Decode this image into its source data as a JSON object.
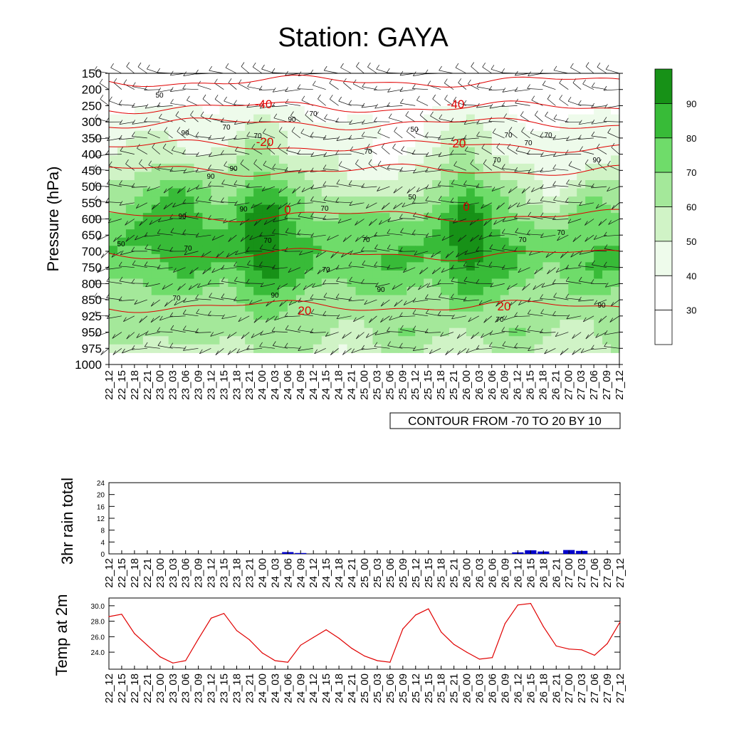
{
  "title": "Station: GAYA",
  "time_labels": [
    "22_12",
    "22_15",
    "22_18",
    "22_21",
    "23_00",
    "23_03",
    "23_06",
    "23_09",
    "23_12",
    "23_15",
    "23_18",
    "23_21",
    "24_00",
    "24_03",
    "24_06",
    "24_09",
    "24_12",
    "24_15",
    "24_18",
    "24_21",
    "25_00",
    "25_03",
    "25_06",
    "25_09",
    "25_12",
    "25_15",
    "25_18",
    "25_21",
    "26_00",
    "26_03",
    "26_06",
    "26_09",
    "26_12",
    "26_15",
    "26_18",
    "26_21",
    "27_00",
    "27_03",
    "27_06",
    "27_09",
    "27_12"
  ],
  "colors": {
    "rh": [
      "#ffffff",
      "#eefbeb",
      "#d0f3c6",
      "#a4e89a",
      "#6fdc6a",
      "#38bb38",
      "#179117"
    ],
    "temp_contour": "#e00000",
    "rain_bar": "#0000cc",
    "temp_line": "#e00000"
  },
  "chart_data": [
    {
      "type": "heatmap",
      "name": "main",
      "title": "Station: GAYA",
      "ylabel": "Pressure (hPa)",
      "levels": [
        150,
        200,
        250,
        300,
        350,
        400,
        450,
        500,
        550,
        600,
        650,
        700,
        750,
        800,
        850,
        925,
        950,
        975,
        1000
      ],
      "contour_note": "CONTOUR FROM -70 TO 20 BY 10",
      "colorbar_ticks": [
        90,
        80,
        70,
        60,
        50,
        40,
        30
      ],
      "colorbar_bounds": [
        20,
        30,
        40,
        50,
        60,
        70,
        80,
        90,
        100
      ],
      "temp_contours": [
        {
          "value": -50,
          "pressure": 175
        },
        {
          "value": -40,
          "pressure": 255
        },
        {
          "value": -30,
          "pressure": 305
        },
        {
          "value": -20,
          "pressure": 375
        },
        {
          "value": -10,
          "pressure": 450
        },
        {
          "value": 0,
          "pressure": 590
        },
        {
          "value": 10,
          "pressure": 710
        },
        {
          "value": 20,
          "pressure": 880
        }
      ],
      "contour_labels": [
        "-40",
        "-20",
        "0",
        "20",
        "-40",
        "-20",
        "0",
        "20"
      ],
      "rh_labels": [
        "50",
        "70",
        "50",
        "70",
        "70",
        "70",
        "90",
        "70",
        "90",
        "70",
        "70",
        "70",
        "90",
        "90",
        "90",
        "90",
        "90",
        "70",
        "70",
        "50",
        "70",
        "50",
        "70",
        "70",
        "70",
        "70",
        "90",
        "90",
        "70",
        "70",
        "90"
      ]
    },
    {
      "type": "bar",
      "name": "rain",
      "ylabel": "3hr rain total",
      "yticks": [
        0,
        4,
        8,
        12,
        16,
        20,
        24
      ],
      "ylim": [
        0,
        24
      ],
      "values": [
        0,
        0,
        0,
        0,
        0,
        0,
        0,
        0,
        0,
        0,
        0,
        0,
        0,
        0,
        0.6,
        0.3,
        0,
        0,
        0,
        0,
        0,
        0,
        0,
        0,
        0,
        0,
        0,
        0,
        0,
        0,
        0,
        0,
        0.5,
        1.2,
        0.8,
        0,
        1.3,
        1.0,
        0,
        0,
        0
      ]
    },
    {
      "type": "line",
      "name": "temp",
      "ylabel": "Temp at 2m",
      "yticks": [
        "24.0",
        "26.0",
        "28.0",
        "30.0"
      ],
      "ylim": [
        21.8,
        31.0
      ],
      "values": [
        28.6,
        28.9,
        26.4,
        24.9,
        23.4,
        22.6,
        22.9,
        25.7,
        28.4,
        29.0,
        26.8,
        25.6,
        23.9,
        22.9,
        22.7,
        24.9,
        25.9,
        26.9,
        25.8,
        24.5,
        23.5,
        22.9,
        22.7,
        27.0,
        28.8,
        29.6,
        26.6,
        25.0,
        24.0,
        23.1,
        23.3,
        27.7,
        30.1,
        30.3,
        27.3,
        24.8,
        24.4,
        24.3,
        23.6,
        25.1,
        27.9
      ]
    }
  ]
}
